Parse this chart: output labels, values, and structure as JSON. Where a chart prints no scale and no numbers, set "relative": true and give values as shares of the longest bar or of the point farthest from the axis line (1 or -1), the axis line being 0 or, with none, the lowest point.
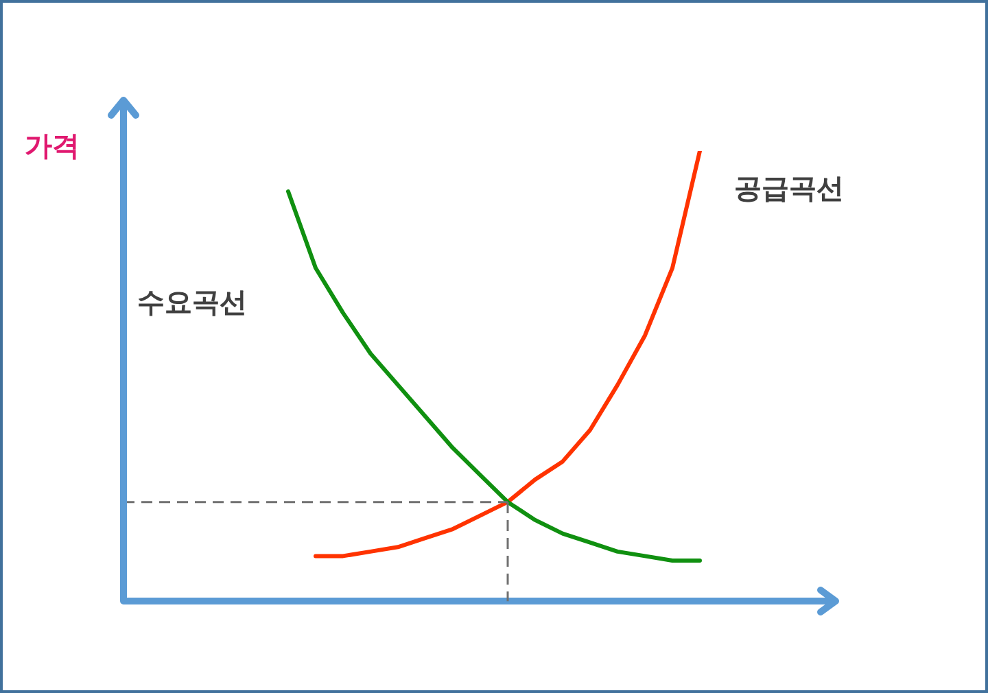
{
  "chart_data": {
    "type": "line",
    "relative": true,
    "ylabel": "가격",
    "categories": [
      null,
      null,
      null,
      null,
      null,
      null,
      null,
      null,
      null,
      null,
      null,
      null,
      null,
      null,
      null,
      null,
      null,
      null,
      null,
      null,
      null,
      null,
      null,
      null,
      null,
      null,
      null
    ],
    "series": [
      {
        "name": "수요곡선",
        "color": "#109010",
        "values": [
          null,
          null,
          null,
          null,
          null,
          null,
          0.91,
          0.74,
          0.64,
          0.55,
          0.48,
          0.41,
          0.34,
          0.28,
          0.22,
          0.18,
          0.15,
          0.13,
          0.11,
          0.1,
          0.09,
          0.09,
          null,
          null,
          null,
          null,
          null
        ]
      },
      {
        "name": "공급곡선",
        "color": "#ff3300",
        "values": [
          null,
          null,
          null,
          null,
          null,
          null,
          null,
          0.1,
          0.1,
          0.11,
          0.12,
          0.14,
          0.16,
          0.19,
          0.22,
          0.27,
          0.31,
          0.38,
          0.48,
          0.59,
          0.74,
          1,
          null,
          null,
          null,
          null,
          null
        ]
      }
    ],
    "ref_lines": [
      {
        "axis": "y",
        "value": 0.22,
        "color": "#707070",
        "line_style": "dashed"
      }
    ],
    "legend": false,
    "marker": "none",
    "line_style": "solid"
  }
}
